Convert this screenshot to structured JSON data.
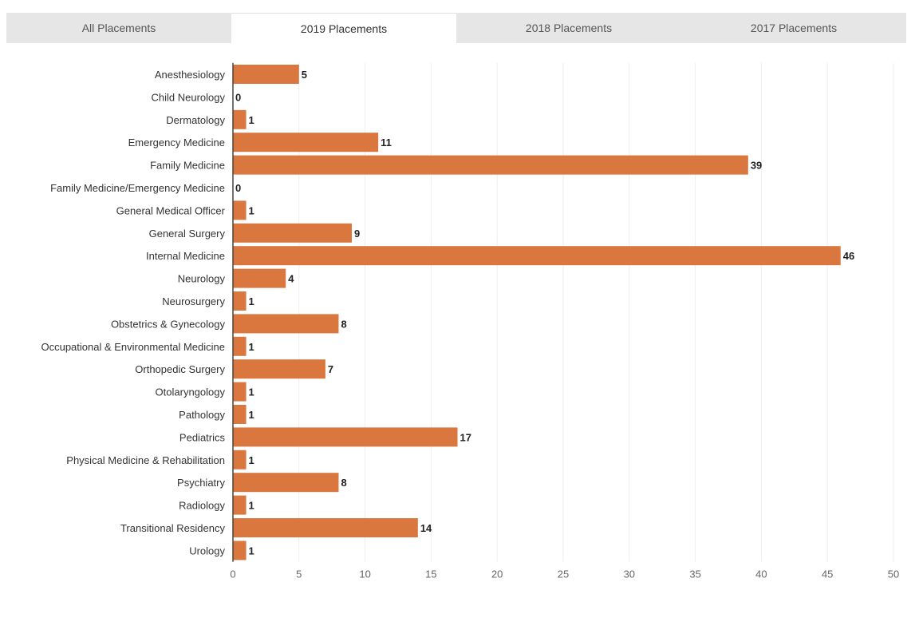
{
  "tabs": [
    {
      "label": "All Placements",
      "active": false
    },
    {
      "label": "2019 Placements",
      "active": true
    },
    {
      "label": "2018 Placements",
      "active": false
    },
    {
      "label": "2017 Placements",
      "active": false
    }
  ],
  "colors": {
    "bar": "#d9773f",
    "tab_bar_bg": "#e6e6e6",
    "active_tab_bg": "#ffffff"
  },
  "chart_data": {
    "type": "bar",
    "orientation": "horizontal",
    "categories": [
      "Anesthesiology",
      "Child Neurology",
      "Dermatology",
      "Emergency Medicine",
      "Family Medicine",
      "Family Medicine/Emergency Medicine",
      "General Medical Officer",
      "General Surgery",
      "Internal Medicine",
      "Neurology",
      "Neurosurgery",
      "Obstetrics & Gynecology",
      "Occupational & Environmental Medicine",
      "Orthopedic Surgery",
      "Otolaryngology",
      "Pathology",
      "Pediatrics",
      "Physical Medicine & Rehabilitation",
      "Psychiatry",
      "Radiology",
      "Transitional Residency",
      "Urology"
    ],
    "values": [
      5,
      0,
      1,
      11,
      39,
      0,
      1,
      9,
      46,
      4,
      1,
      8,
      1,
      7,
      1,
      1,
      17,
      1,
      8,
      1,
      14,
      1
    ],
    "title": "",
    "xlabel": "",
    "ylabel": "",
    "xlim": [
      0,
      50
    ],
    "x_ticks": [
      0,
      5,
      10,
      15,
      20,
      25,
      30,
      35,
      40,
      45,
      50
    ],
    "grid": true,
    "data_labels": true
  }
}
